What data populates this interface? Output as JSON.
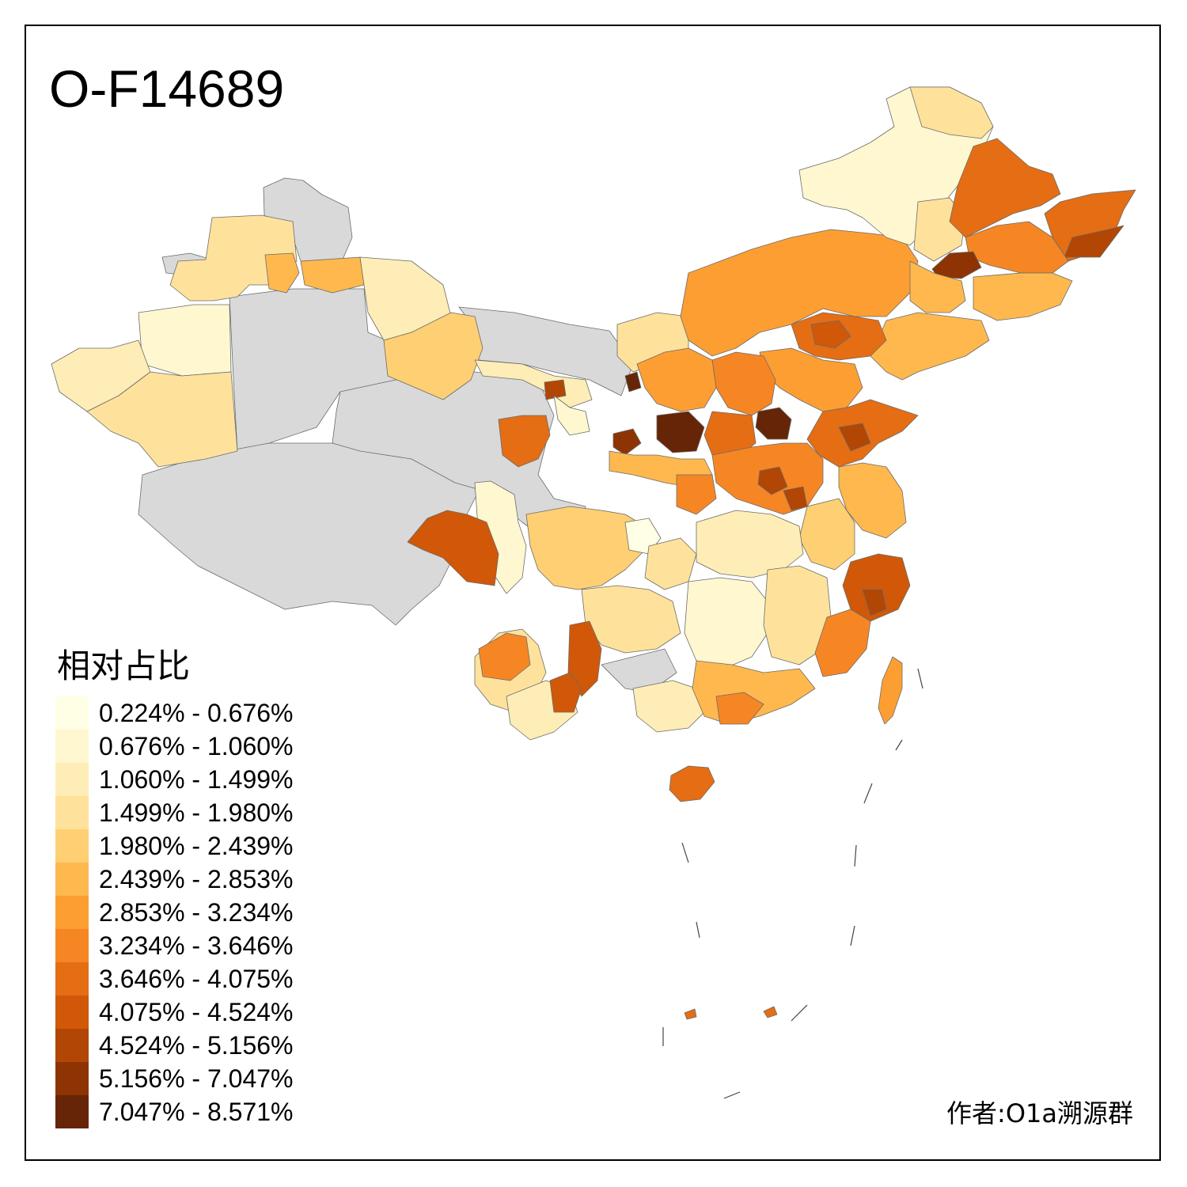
{
  "title": "O-F14689",
  "legend": {
    "title": "相对占比",
    "classes": [
      {
        "label": "0.224% - 0.676%",
        "color": "#FFFFE5"
      },
      {
        "label": "0.676% - 1.060%",
        "color": "#FFF7D0"
      },
      {
        "label": "1.060% - 1.499%",
        "color": "#FEEDB6"
      },
      {
        "label": "1.499% - 1.980%",
        "color": "#FEE29C"
      },
      {
        "label": "1.980% - 2.439%",
        "color": "#FECF73"
      },
      {
        "label": "2.439% - 2.853%",
        "color": "#FEB84E"
      },
      {
        "label": "2.853% - 3.234%",
        "color": "#FD9E33"
      },
      {
        "label": "3.234% - 3.646%",
        "color": "#F68624"
      },
      {
        "label": "3.646% - 4.075%",
        "color": "#E56D14"
      },
      {
        "label": "4.075% - 4.524%",
        "color": "#D05808"
      },
      {
        "label": "4.524% - 5.156%",
        "color": "#B24604"
      },
      {
        "label": "5.156% - 7.047%",
        "color": "#8E3404"
      },
      {
        "label": "7.047% - 8.571%",
        "color": "#662506"
      }
    ]
  },
  "credit": "作者:O1a溯源群",
  "no_data_color": "#D9D9D9"
}
